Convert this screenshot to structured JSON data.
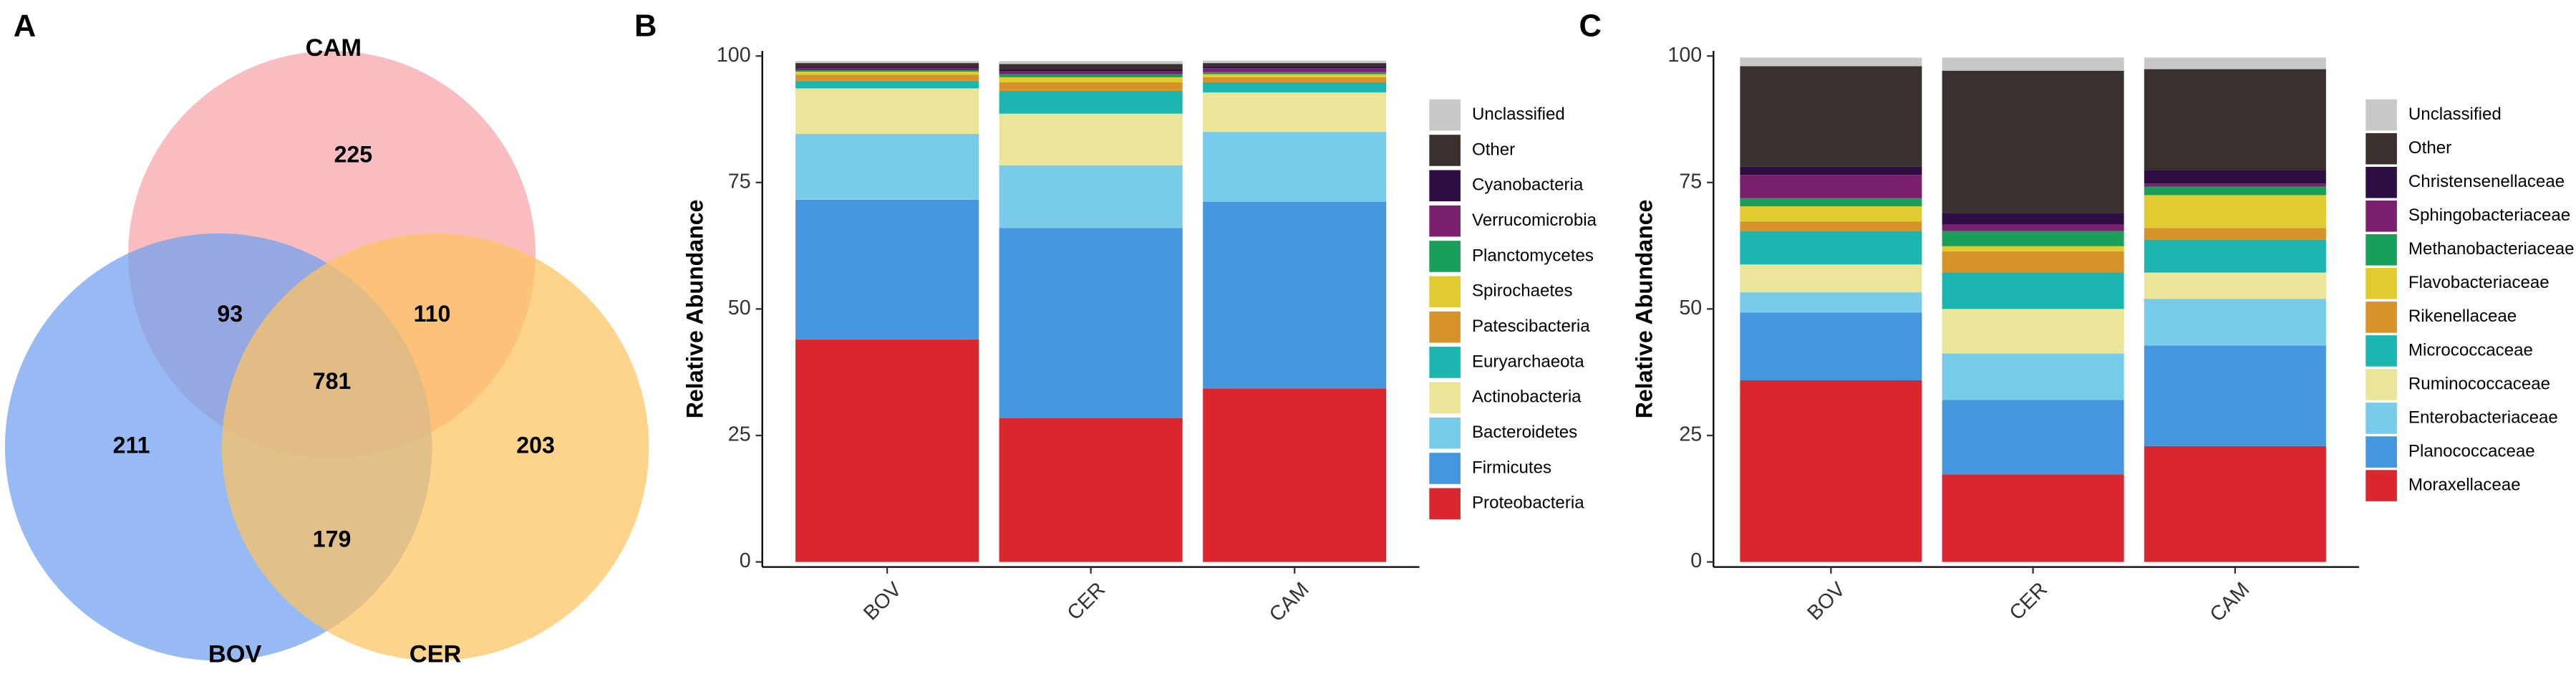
{
  "chart_data": [
    {
      "type": "venn",
      "panel_label": "A",
      "sets": [
        {
          "name": "CAM",
          "color": "#f8a3a6"
        },
        {
          "name": "BOV",
          "color": "#6f9ff0"
        },
        {
          "name": "CER",
          "color": "#fec460"
        }
      ],
      "regions": [
        {
          "sets": [
            "CAM"
          ],
          "value": 225
        },
        {
          "sets": [
            "CAM",
            "BOV"
          ],
          "value": 93
        },
        {
          "sets": [
            "CAM",
            "CER"
          ],
          "value": 110
        },
        {
          "sets": [
            "CAM",
            "BOV",
            "CER"
          ],
          "value": 781
        },
        {
          "sets": [
            "BOV"
          ],
          "value": 211
        },
        {
          "sets": [
            "CER"
          ],
          "value": 203
        },
        {
          "sets": [
            "BOV",
            "CER"
          ],
          "value": 179
        }
      ]
    },
    {
      "type": "bar",
      "stacked": true,
      "panel_label": "B",
      "y_label": "Relative Abundance",
      "categories": [
        "BOV",
        "CER",
        "CAM"
      ],
      "ylim": [
        -1,
        101
      ],
      "yticks": [
        0,
        25,
        50,
        75,
        100
      ],
      "legend": "right",
      "series": [
        {
          "name": "Proteobacteria",
          "color": "#d9262f",
          "values": [
            44,
            28.4,
            34.3
          ]
        },
        {
          "name": "Firmicutes",
          "color": "#4497de",
          "values": [
            27.6,
            37.6,
            36.9
          ]
        },
        {
          "name": "Bacteroidetes",
          "color": "#78ccea",
          "values": [
            13,
            12.4,
            13.8
          ]
        },
        {
          "name": "Actinobacteria",
          "color": "#ebe59a",
          "values": [
            9,
            10.2,
            7.8
          ]
        },
        {
          "name": "Euryarchaeota",
          "color": "#1cb5b0",
          "values": [
            1.5,
            4.5,
            2
          ]
        },
        {
          "name": "Patescibacteria",
          "color": "#d8922a",
          "values": [
            1.2,
            1.7,
            1
          ]
        },
        {
          "name": "Spirochaetes",
          "color": "#e0cc30",
          "values": [
            0.6,
            1,
            0.6
          ]
        },
        {
          "name": "Planctomycetes",
          "color": "#1a9f5a",
          "values": [
            0.3,
            0.6,
            0.4
          ]
        },
        {
          "name": "Verrucomicrobia",
          "color": "#7b1f6f",
          "values": [
            0.5,
            0.6,
            0.8
          ]
        },
        {
          "name": "Cyanobacteria",
          "color": "#2d0e44",
          "values": [
            0.3,
            0.4,
            0.4
          ]
        },
        {
          "name": "Other",
          "color": "#3a302e",
          "values": [
            0.6,
            1,
            0.6
          ]
        },
        {
          "name": "Unclassified",
          "color": "#c8c8c8",
          "values": [
            0.4,
            0.6,
            0.5
          ]
        }
      ]
    },
    {
      "type": "bar",
      "stacked": true,
      "panel_label": "C",
      "y_label": "Relative Abundance",
      "categories": [
        "BOV",
        "CER",
        "CAM"
      ],
      "ylim": [
        -1,
        101
      ],
      "yticks": [
        0,
        25,
        50,
        75,
        100
      ],
      "legend": "right",
      "series": [
        {
          "name": "Moraxellaceae",
          "color": "#d9262f",
          "values": [
            35.9,
            17.3,
            22.9
          ]
        },
        {
          "name": "Planococcaceae",
          "color": "#4497de",
          "values": [
            13.4,
            14.7,
            19.9
          ]
        },
        {
          "name": "Enterobacteriaceae",
          "color": "#78ccea",
          "values": [
            4,
            9.2,
            9.2
          ]
        },
        {
          "name": "Ruminococcaceae",
          "color": "#ebe59a",
          "values": [
            5.5,
            8.8,
            5.2
          ]
        },
        {
          "name": "Micrococcaceae",
          "color": "#1cb5b0",
          "values": [
            6.6,
            7.2,
            6.5
          ]
        },
        {
          "name": "Rikenellaceae",
          "color": "#d8922a",
          "values": [
            1.9,
            4.2,
            2.3
          ]
        },
        {
          "name": "Flavobacteriaceae",
          "color": "#e0cc30",
          "values": [
            3,
            1,
            6.5
          ]
        },
        {
          "name": "Methanobacteriaceae",
          "color": "#1a9f5a",
          "values": [
            1.6,
            3,
            1.7
          ]
        },
        {
          "name": "Sphingobacteriaceae",
          "color": "#7b1f6f",
          "values": [
            4.6,
            1.3,
            0.6
          ]
        },
        {
          "name": "Christensenellaceae",
          "color": "#2d0e44",
          "values": [
            1.6,
            2.3,
            2.7
          ]
        },
        {
          "name": "Other",
          "color": "#3a302e",
          "values": [
            19.9,
            28.1,
            19.9
          ]
        },
        {
          "name": "Unclassified",
          "color": "#c8c8c8",
          "values": [
            1.7,
            2.6,
            2.3
          ]
        }
      ]
    }
  ]
}
